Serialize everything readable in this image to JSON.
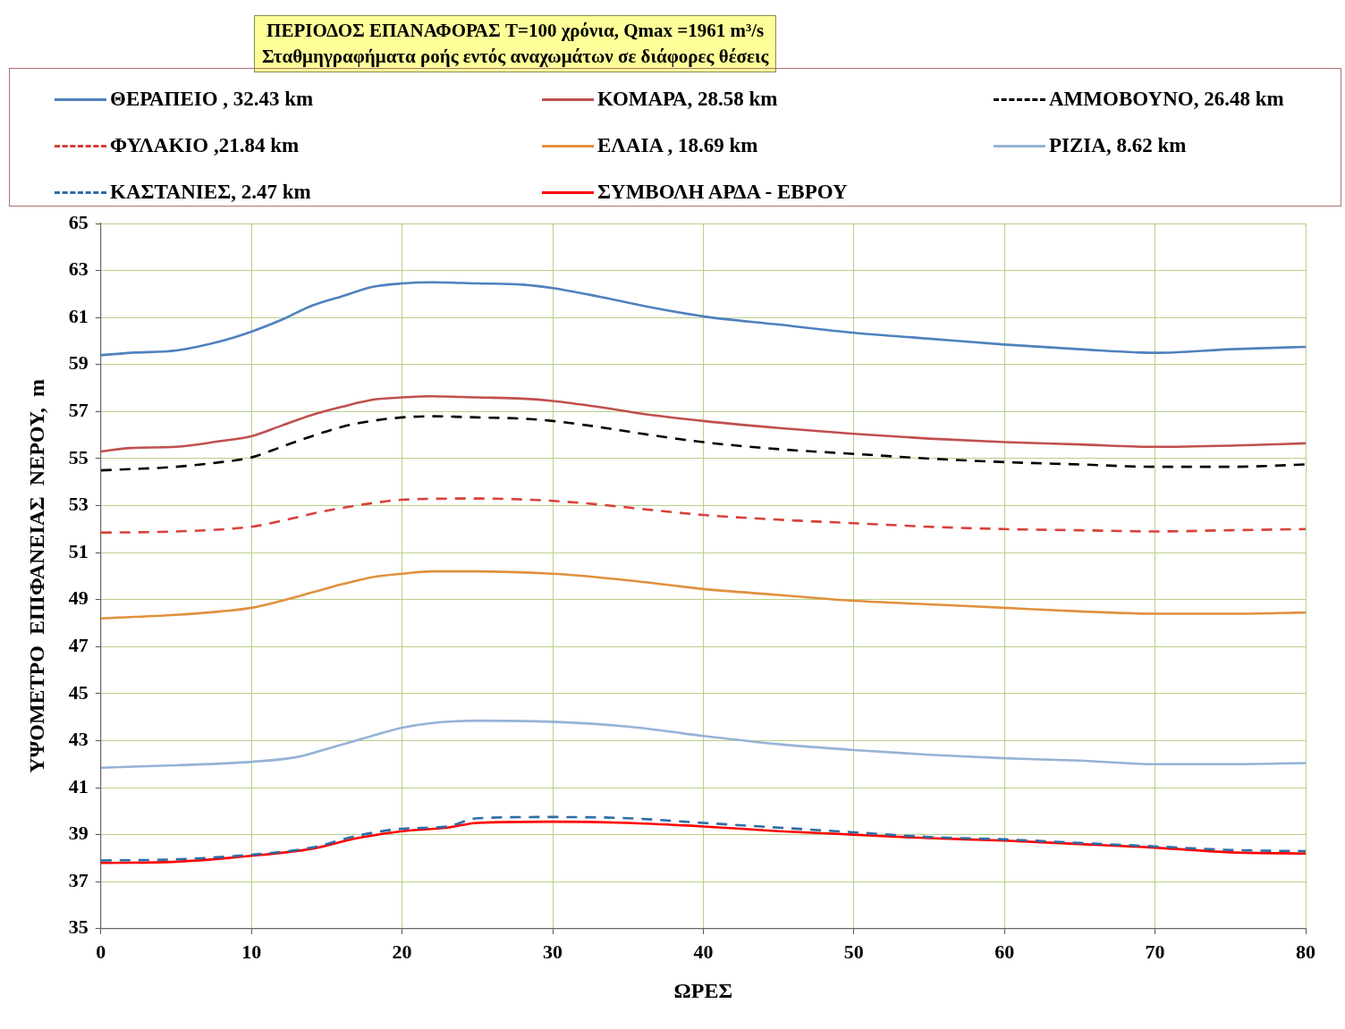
{
  "chart_data": {
    "type": "line",
    "title": "ΠΕΡΙΟΔΟΣ ΕΠΑΝΑΦΟΡΑΣ  T=100 χρόνια, Qmax =1961   m³/s",
    "subtitle": "Σταθμηγραφήματα ροής εντός αναχωμάτων σε διάφορες θέσεις",
    "xlabel": "ΩΡΕΣ",
    "ylabel": "ΥΨΟΜΕΤΡΟ  ΕΠΙΦΑΝΕΙΑΣ  ΝΕΡΟΥ,  m",
    "xlim": [
      0,
      80
    ],
    "xticks": [
      0,
      10,
      20,
      30,
      40,
      50,
      60,
      70,
      80
    ],
    "ylim": [
      35,
      65
    ],
    "yticks": [
      35,
      37,
      39,
      41,
      43,
      45,
      47,
      49,
      51,
      53,
      55,
      57,
      59,
      61,
      63,
      65
    ],
    "grid": true,
    "legend": "top",
    "marker": "none",
    "series": [
      {
        "name": "ΘΕΡΑΠΕΙΟ  , 32.43 km",
        "color": "#4f81bd",
        "line_style": "solid",
        "x": [
          0,
          2,
          5,
          8,
          10,
          12,
          14,
          16,
          18,
          20,
          22,
          25,
          28,
          30,
          33,
          36,
          40,
          45,
          50,
          55,
          60,
          65,
          70,
          75,
          80
        ],
        "values": [
          59.4,
          59.5,
          59.6,
          60.0,
          60.4,
          60.9,
          61.5,
          61.9,
          62.3,
          62.45,
          62.5,
          62.45,
          62.4,
          62.25,
          61.9,
          61.5,
          61.05,
          60.7,
          60.35,
          60.1,
          59.85,
          59.65,
          59.5,
          59.65,
          59.75
        ]
      },
      {
        "name": "ΚΟΜΑΡΑ, 28.58 km",
        "color": "#c0504d",
        "line_style": "solid",
        "x": [
          0,
          2,
          5,
          8,
          10,
          12,
          14,
          16,
          18,
          20,
          22,
          25,
          28,
          30,
          33,
          36,
          40,
          45,
          50,
          55,
          60,
          65,
          70,
          75,
          80
        ],
        "values": [
          55.3,
          55.45,
          55.5,
          55.75,
          55.95,
          56.4,
          56.85,
          57.2,
          57.5,
          57.6,
          57.65,
          57.6,
          57.55,
          57.45,
          57.2,
          56.9,
          56.6,
          56.3,
          56.05,
          55.85,
          55.7,
          55.6,
          55.5,
          55.55,
          55.65
        ]
      },
      {
        "name": "ΑΜΜΟΒΟΥΝΟ, 26.48 km",
        "color": "#000000",
        "line_style": "dashed",
        "x": [
          0,
          2,
          5,
          8,
          10,
          12,
          14,
          16,
          18,
          20,
          22,
          25,
          28,
          30,
          33,
          36,
          40,
          45,
          50,
          55,
          60,
          65,
          70,
          75,
          80
        ],
        "values": [
          54.5,
          54.55,
          54.65,
          54.85,
          55.05,
          55.5,
          55.95,
          56.35,
          56.6,
          56.75,
          56.8,
          56.75,
          56.7,
          56.6,
          56.35,
          56.05,
          55.7,
          55.4,
          55.2,
          55.0,
          54.85,
          54.75,
          54.65,
          54.65,
          54.75
        ]
      },
      {
        "name": "ΦΥΛΑΚΙΟ ,21.84 km",
        "color": "#d9413a",
        "line_style": "dashed",
        "x": [
          0,
          5,
          10,
          12,
          14,
          16,
          18,
          20,
          25,
          30,
          33,
          36,
          40,
          45,
          50,
          55,
          60,
          65,
          70,
          75,
          80
        ],
        "values": [
          51.85,
          51.9,
          52.1,
          52.35,
          52.65,
          52.9,
          53.1,
          53.25,
          53.3,
          53.2,
          53.05,
          52.85,
          52.6,
          52.4,
          52.25,
          52.1,
          52.0,
          51.95,
          51.9,
          51.95,
          52.0
        ]
      },
      {
        "name": "ΕΛΑΙΑ , 18.69 km",
        "color": "#e0913e",
        "line_style": "solid",
        "x": [
          0,
          5,
          8,
          10,
          12,
          14,
          16,
          18,
          20,
          22,
          25,
          30,
          33,
          36,
          40,
          45,
          50,
          55,
          60,
          65,
          70,
          75,
          80
        ],
        "values": [
          48.2,
          48.35,
          48.5,
          48.65,
          48.95,
          49.3,
          49.65,
          49.95,
          50.1,
          50.2,
          50.2,
          50.1,
          49.95,
          49.75,
          49.45,
          49.2,
          48.95,
          48.8,
          48.65,
          48.5,
          48.4,
          48.4,
          48.45
        ]
      },
      {
        "name": "ΡΙΖΙΑ, 8.62 km",
        "color": "#95b3d7",
        "line_style": "solid",
        "x": [
          0,
          5,
          10,
          13,
          15,
          18,
          20,
          22,
          25,
          30,
          35,
          40,
          45,
          50,
          55,
          60,
          65,
          70,
          75,
          80
        ],
        "values": [
          41.85,
          41.95,
          42.1,
          42.3,
          42.65,
          43.2,
          43.55,
          43.75,
          43.85,
          43.8,
          43.6,
          43.2,
          42.85,
          42.6,
          42.4,
          42.25,
          42.15,
          42.0,
          42.0,
          42.05
        ]
      },
      {
        "name": "ΚΑΣΤΑΝΙΕΣ, 2.47 km",
        "color": "#2e6da4",
        "line_style": "dashed",
        "x": [
          0,
          5,
          10,
          14,
          17,
          20,
          23,
          25,
          30,
          35,
          40,
          45,
          50,
          55,
          60,
          65,
          70,
          75,
          80
        ],
        "values": [
          37.9,
          37.95,
          38.15,
          38.45,
          38.95,
          39.25,
          39.35,
          39.7,
          39.75,
          39.7,
          39.5,
          39.3,
          39.1,
          38.9,
          38.8,
          38.65,
          38.5,
          38.35,
          38.3
        ]
      },
      {
        "name": "ΣΥΜΒΟΛΗ ΑΡΔΑ - ΕΒΡΟΥ",
        "color": "#ff0000",
        "line_style": "solid",
        "x": [
          0,
          5,
          10,
          14,
          17,
          20,
          23,
          25,
          30,
          35,
          40,
          45,
          50,
          55,
          60,
          65,
          70,
          75,
          80
        ],
        "values": [
          37.8,
          37.85,
          38.1,
          38.4,
          38.85,
          39.15,
          39.3,
          39.5,
          39.55,
          39.5,
          39.35,
          39.15,
          39.0,
          38.85,
          38.75,
          38.6,
          38.45,
          38.25,
          38.2
        ]
      }
    ]
  }
}
